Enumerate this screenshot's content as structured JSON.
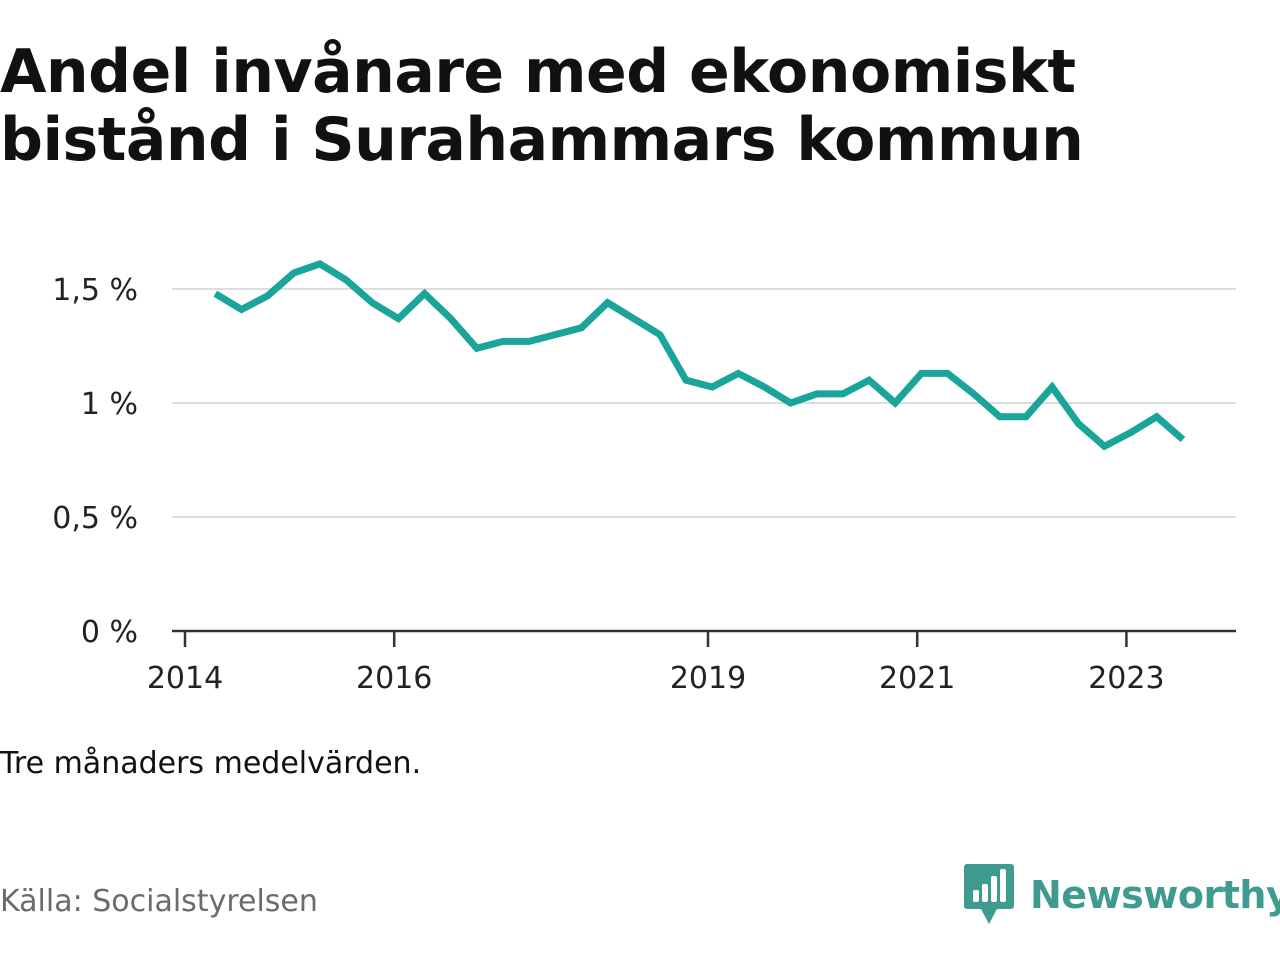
{
  "title": "Andel invånare med ekonomiskt bistånd i Surahammars kommun",
  "note": "Tre månaders medelvärden.",
  "source": "Källa: Socialstyrelsen",
  "brand": {
    "name": "Newsworthy",
    "icon": "bar-chart-speech-bubble-icon",
    "color": "#3f9a8f"
  },
  "chart_data": {
    "type": "line",
    "title": "Andel invånare med ekonomiskt bistånd i Surahammars kommun",
    "xlabel": "",
    "ylabel": "",
    "x_ticks": [
      "2014",
      "2016",
      "2019",
      "2021",
      "2023"
    ],
    "y_ticks": [
      "0 %",
      "0,5 %",
      "1 %",
      "1,5 %"
    ],
    "ylim": [
      0,
      1.7
    ],
    "grid": true,
    "legend": "none",
    "line_color": "#1aa59b",
    "series": [
      {
        "x": [
          2014.29,
          2014.54,
          2014.79,
          2015.04,
          2015.29,
          2015.54,
          2015.79,
          2016.04,
          2016.29,
          2016.54,
          2016.79,
          2017.04,
          2017.29,
          2017.54,
          2017.79,
          2018.04,
          2018.29,
          2018.54,
          2018.79,
          2019.04,
          2019.29,
          2019.54,
          2019.79,
          2020.04,
          2020.29,
          2020.54,
          2020.79,
          2021.04,
          2021.29,
          2021.54,
          2021.79,
          2022.04,
          2022.29,
          2022.54,
          2022.79,
          2023.04,
          2023.29,
          2023.54
        ],
        "values": [
          1.48,
          1.41,
          1.47,
          1.57,
          1.61,
          1.54,
          1.44,
          1.37,
          1.48,
          1.37,
          1.24,
          1.27,
          1.27,
          1.3,
          1.33,
          1.44,
          1.37,
          1.3,
          1.1,
          1.07,
          1.13,
          1.07,
          1.0,
          1.04,
          1.04,
          1.1,
          1.0,
          1.13,
          1.13,
          1.04,
          0.94,
          0.94,
          1.07,
          0.91,
          0.81,
          0.87,
          0.94,
          0.84
        ]
      }
    ]
  }
}
